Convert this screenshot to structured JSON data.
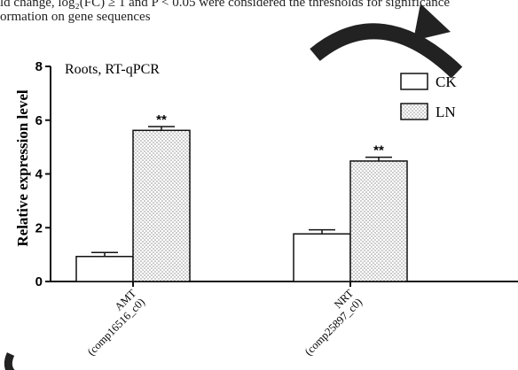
{
  "caption": {
    "line1": "ld change, log₂(FC) ≥ 1 and P < 0.05 were considered the thresholds for significance",
    "line2": "ormation on gene sequences"
  },
  "chart_data": {
    "type": "bar",
    "panel_label": "Roots, RT-qPCR",
    "ylabel": "Relative expression level",
    "ylim": [
      0,
      8
    ],
    "yticks": [
      "0",
      "2",
      "4",
      "6",
      "8"
    ],
    "categories": [
      {
        "name": "AMT",
        "id": "(comp16516_c0)"
      },
      {
        "name": "NRT",
        "id": "(comp25897_c0)"
      }
    ],
    "series": [
      {
        "name": "CK",
        "values": [
          0.93,
          1.77
        ],
        "errors": [
          0.15,
          0.15
        ],
        "pattern": "none"
      },
      {
        "name": "LN",
        "values": [
          5.62,
          4.48
        ],
        "errors": [
          0.14,
          0.14
        ],
        "pattern": "dots"
      }
    ],
    "annotations": [
      "**",
      "**"
    ],
    "legend": "top-right"
  }
}
